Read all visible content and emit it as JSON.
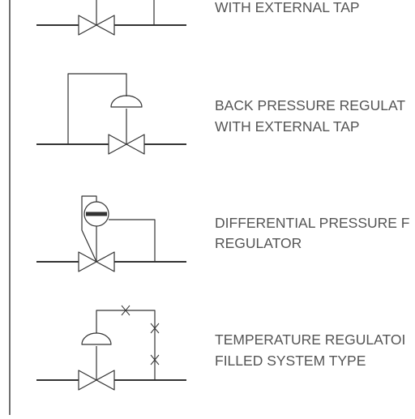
{
  "symbols": [
    {
      "label_lines": [
        "WITH EXTERNAL TAP"
      ]
    },
    {
      "label_lines": [
        "BACK PRESSURE REGULAT",
        "WITH EXTERNAL TAP"
      ]
    },
    {
      "label_lines": [
        "DIFFERENTIAL PRESSURE F",
        "REGULATOR"
      ]
    },
    {
      "label_lines": [
        "TEMPERATURE REGULATOI",
        "FILLED SYSTEM TYPE"
      ]
    }
  ],
  "colors": {
    "line": "#333333",
    "text": "#555555",
    "background": "#ffffff"
  }
}
